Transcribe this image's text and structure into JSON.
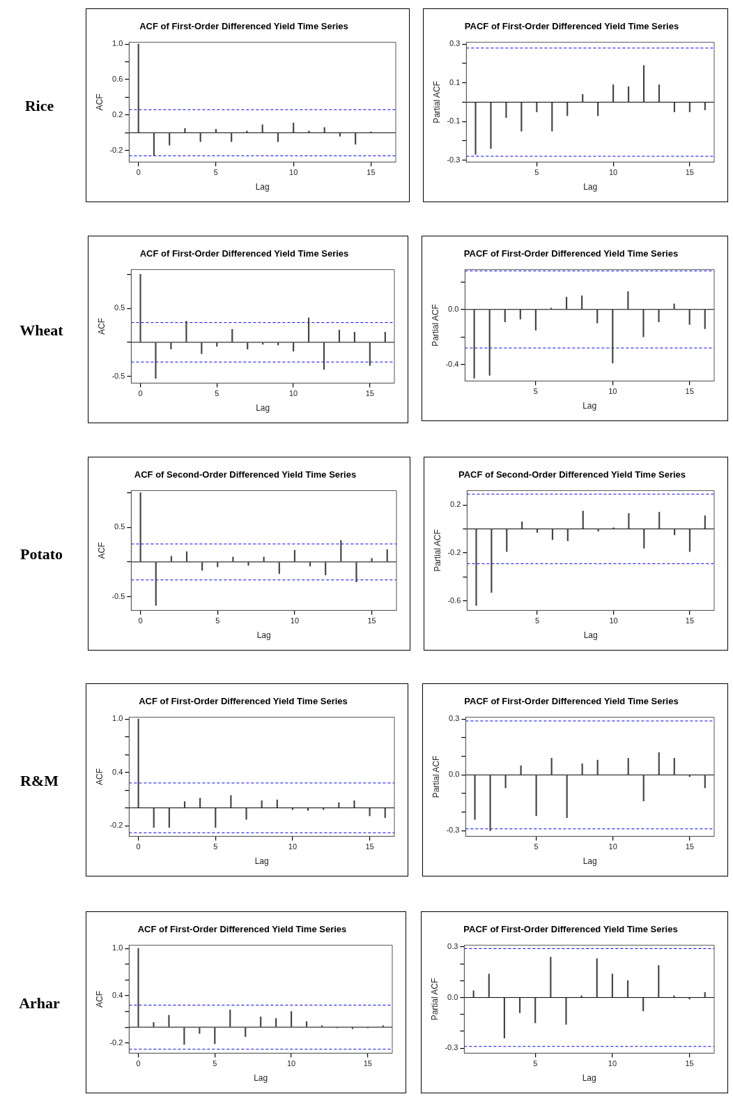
{
  "chart_data": [
    {
      "type": "bar",
      "title": "ACF of First-Order Differenced Yield Time Series",
      "xlabel": "Lag",
      "ylabel": "ACF",
      "annotations": [
        "Rice"
      ],
      "color": "#444444",
      "x": [
        0,
        1,
        2,
        3,
        4,
        5,
        6,
        7,
        8,
        9,
        10,
        11,
        12,
        13,
        14,
        15
      ],
      "values": [
        1.0,
        -0.26,
        -0.14,
        0.05,
        -0.1,
        0.04,
        -0.1,
        0.02,
        0.09,
        -0.1,
        0.11,
        0.02,
        0.06,
        -0.04,
        -0.13,
        0.01
      ],
      "xlim": [
        -0.6,
        16.6
      ],
      "xticks": [
        0,
        5,
        10,
        15
      ],
      "ylim": [
        -0.33,
        1.02
      ],
      "yticks": [
        -0.2,
        {
          "value": 0,
          "label": null
        },
        0.2,
        {
          "value": 0.4,
          "label": null
        },
        0.6,
        {
          "value": 0.8,
          "label": null
        },
        {
          "value": 1,
          "label": "1.0"
        }
      ],
      "ref_lines": [
        {
          "axis": "y",
          "value": 0,
          "color": "#000000",
          "line_style": "solid"
        },
        {
          "axis": "y",
          "value": 0.26,
          "color": "#0000ff",
          "line_style": "dashed"
        },
        {
          "axis": "y",
          "value": -0.26,
          "color": "#0000ff",
          "line_style": "dashed"
        }
      ]
    },
    {
      "type": "bar",
      "title": "PACF of First-Order Differenced Yield Time Series",
      "xlabel": "Lag",
      "ylabel": "Partial ACF",
      "color": "#444444",
      "x": [
        1,
        2,
        3,
        4,
        5,
        6,
        7,
        8,
        9,
        10,
        11,
        12,
        13,
        14,
        15,
        16
      ],
      "values": [
        -0.27,
        -0.24,
        -0.08,
        -0.15,
        -0.05,
        -0.15,
        -0.07,
        0.04,
        -0.07,
        0.09,
        0.08,
        0.19,
        0.09,
        -0.05,
        -0.05,
        -0.04
      ],
      "xlim": [
        0.4,
        16.6
      ],
      "xticks": [
        5,
        10,
        15
      ],
      "ylim": [
        -0.31,
        0.31
      ],
      "yticks": [
        -0.3,
        {
          "value": -0.2,
          "label": null
        },
        -0.1,
        {
          "value": 0,
          "label": null
        },
        0.1,
        {
          "value": 0.2,
          "label": null
        },
        0.3
      ],
      "ref_lines": [
        {
          "axis": "y",
          "value": 0,
          "color": "#000000",
          "line_style": "solid"
        },
        {
          "axis": "y",
          "value": 0.28,
          "color": "#0000ff",
          "line_style": "dashed"
        },
        {
          "axis": "y",
          "value": -0.28,
          "color": "#0000ff",
          "line_style": "dashed"
        }
      ]
    },
    {
      "type": "bar",
      "title": "ACF of First-Order Differenced Yield Time Series",
      "xlabel": "Lag",
      "ylabel": "ACF",
      "annotations": [
        "Wheat"
      ],
      "color": "#444444",
      "x": [
        0,
        1,
        2,
        3,
        4,
        5,
        6,
        7,
        8,
        9,
        10,
        11,
        12,
        13,
        14,
        15,
        16
      ],
      "values": [
        1.0,
        -0.53,
        -0.1,
        0.31,
        -0.17,
        -0.06,
        0.19,
        -0.1,
        -0.03,
        -0.04,
        -0.13,
        0.36,
        -0.4,
        0.18,
        0.15,
        -0.34,
        0.15
      ],
      "xlim": [
        -0.6,
        16.6
      ],
      "xticks": [
        0,
        5,
        10,
        15
      ],
      "ylim": [
        -0.6,
        1.07
      ],
      "yticks": [
        -0.5,
        {
          "value": 0,
          "label": null
        },
        0.5,
        {
          "value": 1,
          "label": null
        }
      ],
      "ref_lines": [
        {
          "axis": "y",
          "value": 0,
          "color": "#000000",
          "line_style": "solid"
        },
        {
          "axis": "y",
          "value": 0.29,
          "color": "#0000ff",
          "line_style": "dashed"
        },
        {
          "axis": "y",
          "value": -0.29,
          "color": "#0000ff",
          "line_style": "dashed"
        }
      ]
    },
    {
      "type": "bar",
      "title": "PACF of First-Order Differenced Yield Time Series",
      "xlabel": "Lag",
      "ylabel": "Partial ACF",
      "color": "#444444",
      "x": [
        1,
        2,
        3,
        4,
        5,
        6,
        7,
        8,
        9,
        10,
        11,
        12,
        13,
        14,
        15,
        16
      ],
      "values": [
        -0.5,
        -0.48,
        -0.09,
        -0.07,
        -0.15,
        0.01,
        0.09,
        0.1,
        -0.1,
        -0.39,
        0.13,
        -0.2,
        -0.09,
        0.04,
        -0.11,
        -0.14
      ],
      "xlim": [
        0.4,
        16.6
      ],
      "xticks": [
        5,
        10,
        15
      ],
      "ylim": [
        -0.52,
        0.29
      ],
      "yticks": [
        -0.4,
        {
          "value": -0.2,
          "label": null
        },
        {
          "value": 0,
          "label": "0.0"
        },
        {
          "value": 0.2,
          "label": null
        }
      ],
      "ref_lines": [
        {
          "axis": "y",
          "value": 0,
          "color": "#000000",
          "line_style": "solid"
        },
        {
          "axis": "y",
          "value": 0.28,
          "color": "#0000ff",
          "line_style": "dashed"
        },
        {
          "axis": "y",
          "value": -0.28,
          "color": "#0000ff",
          "line_style": "dashed"
        }
      ]
    },
    {
      "type": "bar",
      "title": "ACF of Second-Order Differenced Yield Time Series",
      "xlabel": "Lag",
      "ylabel": "ACF",
      "annotations": [
        "Potato"
      ],
      "color": "#444444",
      "x": [
        0,
        1,
        2,
        3,
        4,
        5,
        6,
        7,
        8,
        9,
        10,
        11,
        12,
        13,
        14,
        15,
        16
      ],
      "values": [
        1.0,
        -0.63,
        0.08,
        0.15,
        -0.12,
        -0.07,
        0.07,
        -0.05,
        0.07,
        -0.17,
        0.17,
        -0.06,
        -0.19,
        0.31,
        -0.29,
        0.05,
        0.18
      ],
      "xlim": [
        -0.6,
        16.6
      ],
      "xticks": [
        0,
        5,
        10,
        15
      ],
      "ylim": [
        -0.7,
        1.03
      ],
      "yticks": [
        -0.5,
        {
          "value": 0,
          "label": null
        },
        0.5,
        {
          "value": 1,
          "label": null
        }
      ],
      "ref_lines": [
        {
          "axis": "y",
          "value": 0,
          "color": "#000000",
          "line_style": "solid"
        },
        {
          "axis": "y",
          "value": 0.26,
          "color": "#0000ff",
          "line_style": "dashed"
        },
        {
          "axis": "y",
          "value": -0.26,
          "color": "#0000ff",
          "line_style": "dashed"
        }
      ]
    },
    {
      "type": "bar",
      "title": "PACF of Second-Order Differenced Yield Time Series",
      "xlabel": "Lag",
      "ylabel": "Partial ACF",
      "color": "#444444",
      "x": [
        1,
        2,
        3,
        4,
        5,
        6,
        7,
        8,
        9,
        10,
        11,
        12,
        13,
        14,
        15,
        16
      ],
      "values": [
        -0.64,
        -0.53,
        -0.19,
        0.06,
        -0.03,
        -0.09,
        -0.1,
        0.15,
        -0.02,
        0.01,
        0.13,
        -0.16,
        0.14,
        -0.05,
        -0.19,
        0.11
      ],
      "xlim": [
        0.4,
        16.6
      ],
      "xticks": [
        5,
        10,
        15
      ],
      "ylim": [
        -0.68,
        0.32
      ],
      "yticks": [
        -0.6,
        {
          "value": -0.4,
          "label": null
        },
        -0.2,
        {
          "value": 0,
          "label": null
        },
        0.2
      ],
      "ref_lines": [
        {
          "axis": "y",
          "value": 0,
          "color": "#000000",
          "line_style": "solid"
        },
        {
          "axis": "y",
          "value": 0.29,
          "color": "#0000ff",
          "line_style": "dashed"
        },
        {
          "axis": "y",
          "value": -0.29,
          "color": "#0000ff",
          "line_style": "dashed"
        }
      ]
    },
    {
      "type": "bar",
      "title": "ACF of First-Order Differenced Yield Time Series",
      "xlabel": "Lag",
      "ylabel": "ACF",
      "annotations": [
        "R&M"
      ],
      "color": "#444444",
      "x": [
        0,
        1,
        2,
        3,
        4,
        5,
        6,
        7,
        8,
        9,
        10,
        11,
        12,
        13,
        14,
        15,
        16
      ],
      "values": [
        1.0,
        -0.22,
        -0.22,
        0.07,
        0.11,
        -0.22,
        0.14,
        -0.13,
        0.08,
        0.09,
        -0.02,
        -0.03,
        -0.02,
        0.06,
        0.08,
        -0.09,
        -0.11
      ],
      "xlim": [
        -0.6,
        16.6
      ],
      "xticks": [
        0,
        5,
        10,
        15
      ],
      "ylim": [
        -0.32,
        1.02
      ],
      "yticks": [
        -0.2,
        {
          "value": 0,
          "label": null
        },
        {
          "value": 0.2,
          "label": null
        },
        0.4,
        {
          "value": 0.6,
          "label": null
        },
        {
          "value": 0.8,
          "label": null
        },
        {
          "value": 1,
          "label": "1.0"
        }
      ],
      "ref_lines": [
        {
          "axis": "y",
          "value": 0,
          "color": "#000000",
          "line_style": "solid"
        },
        {
          "axis": "y",
          "value": 0.28,
          "color": "#0000ff",
          "line_style": "dashed"
        },
        {
          "axis": "y",
          "value": -0.28,
          "color": "#0000ff",
          "line_style": "dashed"
        }
      ]
    },
    {
      "type": "bar",
      "title": "PACF of First-Order Differenced Yield Time Series",
      "xlabel": "Lag",
      "ylabel": "Partial ACF",
      "color": "#444444",
      "x": [
        1,
        2,
        3,
        4,
        5,
        6,
        7,
        8,
        9,
        10,
        11,
        12,
        13,
        14,
        15,
        16
      ],
      "values": [
        -0.24,
        -0.3,
        -0.07,
        0.05,
        -0.22,
        0.09,
        -0.23,
        0.06,
        0.08,
        0.0,
        0.09,
        -0.14,
        0.12,
        0.09,
        -0.01,
        -0.07
      ],
      "xlim": [
        0.4,
        16.6
      ],
      "xticks": [
        5,
        10,
        15
      ],
      "ylim": [
        -0.33,
        0.31
      ],
      "yticks": [
        -0.3,
        {
          "value": -0.2,
          "label": null
        },
        {
          "value": -0.1,
          "label": null
        },
        {
          "value": 0,
          "label": "0.0"
        },
        {
          "value": 0.1,
          "label": null
        },
        {
          "value": 0.2,
          "label": null
        },
        0.3
      ],
      "ref_lines": [
        {
          "axis": "y",
          "value": 0,
          "color": "#000000",
          "line_style": "solid"
        },
        {
          "axis": "y",
          "value": 0.29,
          "color": "#0000ff",
          "line_style": "dashed"
        },
        {
          "axis": "y",
          "value": -0.29,
          "color": "#0000ff",
          "line_style": "dashed"
        }
      ]
    },
    {
      "type": "bar",
      "title": "ACF of First-Order Differenced Yield Time Series",
      "xlabel": "Lag",
      "ylabel": "ACF",
      "annotations": [
        "Arhar"
      ],
      "color": "#444444",
      "x": [
        0,
        1,
        2,
        3,
        4,
        5,
        6,
        7,
        8,
        9,
        10,
        11,
        12,
        13,
        14,
        15,
        16
      ],
      "values": [
        1.0,
        0.06,
        0.15,
        -0.22,
        -0.08,
        -0.21,
        0.22,
        -0.12,
        0.13,
        0.11,
        0.2,
        0.07,
        0.02,
        -0.01,
        -0.02,
        -0.01,
        0.02
      ],
      "xlim": [
        -0.6,
        16.6
      ],
      "xticks": [
        0,
        5,
        10,
        15
      ],
      "ylim": [
        -0.33,
        1.04
      ],
      "yticks": [
        -0.2,
        {
          "value": 0,
          "label": null
        },
        {
          "value": 0.2,
          "label": null
        },
        0.4,
        {
          "value": 0.6,
          "label": null
        },
        {
          "value": 0.8,
          "label": null
        },
        {
          "value": 1,
          "label": "1.0"
        }
      ],
      "ref_lines": [
        {
          "axis": "y",
          "value": 0,
          "color": "#000000",
          "line_style": "solid"
        },
        {
          "axis": "y",
          "value": 0.28,
          "color": "#0000ff",
          "line_style": "dashed"
        },
        {
          "axis": "y",
          "value": -0.28,
          "color": "#0000ff",
          "line_style": "dashed"
        }
      ]
    },
    {
      "type": "bar",
      "title": "PACF of First-Order Differenced Yield Time Series",
      "xlabel": "Lag",
      "ylabel": "Partial ACF",
      "color": "#444444",
      "x": [
        1,
        2,
        3,
        4,
        5,
        6,
        7,
        8,
        9,
        10,
        11,
        12,
        13,
        14,
        15,
        16
      ],
      "values": [
        0.04,
        0.14,
        -0.24,
        -0.09,
        -0.15,
        0.24,
        -0.16,
        0.01,
        0.23,
        0.14,
        0.1,
        -0.08,
        0.19,
        0.01,
        -0.01,
        0.03
      ],
      "xlim": [
        0.4,
        16.6
      ],
      "xticks": [
        5,
        10,
        15
      ],
      "ylim": [
        -0.33,
        0.31
      ],
      "yticks": [
        -0.3,
        {
          "value": -0.2,
          "label": null
        },
        {
          "value": -0.1,
          "label": null
        },
        {
          "value": 0,
          "label": "0.0"
        },
        {
          "value": 0.1,
          "label": null
        },
        {
          "value": 0.2,
          "label": null
        },
        0.3
      ],
      "ref_lines": [
        {
          "axis": "y",
          "value": 0,
          "color": "#000000",
          "line_style": "solid"
        },
        {
          "axis": "y",
          "value": 0.29,
          "color": "#0000ff",
          "line_style": "dashed"
        },
        {
          "axis": "y",
          "value": -0.29,
          "color": "#0000ff",
          "line_style": "dashed"
        }
      ]
    }
  ]
}
